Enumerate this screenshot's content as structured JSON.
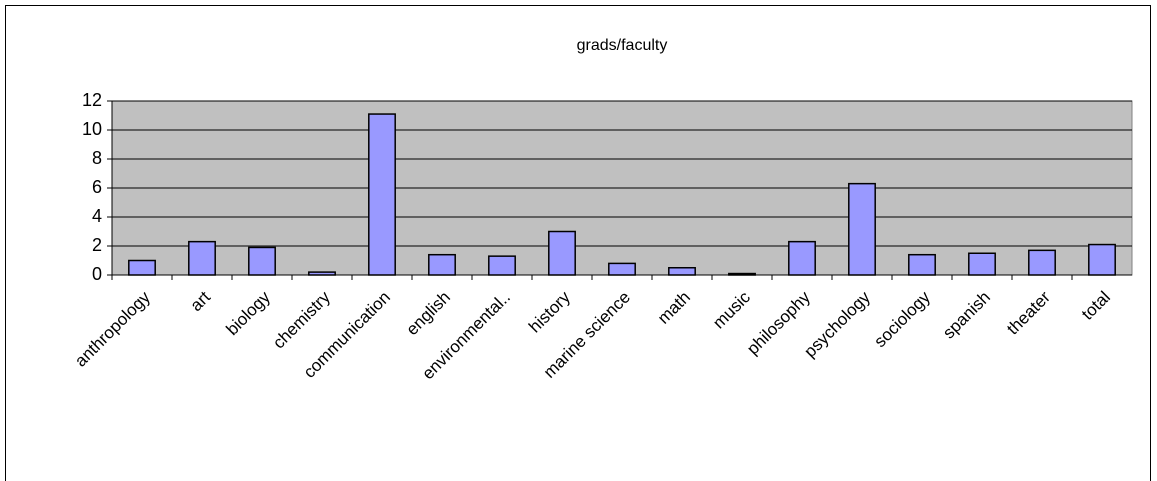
{
  "chart_data": {
    "type": "bar",
    "title": "grads/faculty",
    "categories": [
      "anthropology",
      "art",
      "biology",
      "chemistry",
      "communication",
      "english",
      "environmental..",
      "history",
      "marine science",
      "math",
      "music",
      "philosophy",
      "psychology",
      "sociology",
      "spanish",
      "theater",
      "total"
    ],
    "values": [
      1.0,
      2.3,
      1.9,
      0.2,
      11.1,
      1.4,
      1.3,
      3.0,
      0.8,
      0.5,
      0.1,
      2.3,
      6.3,
      1.4,
      1.5,
      1.7,
      2.1
    ],
    "color": "#9999ff",
    "plot_background": "#c0c0c0",
    "ylim": [
      0,
      12
    ],
    "yticks": [
      0,
      2,
      4,
      6,
      8,
      10,
      12
    ],
    "grid": true
  }
}
